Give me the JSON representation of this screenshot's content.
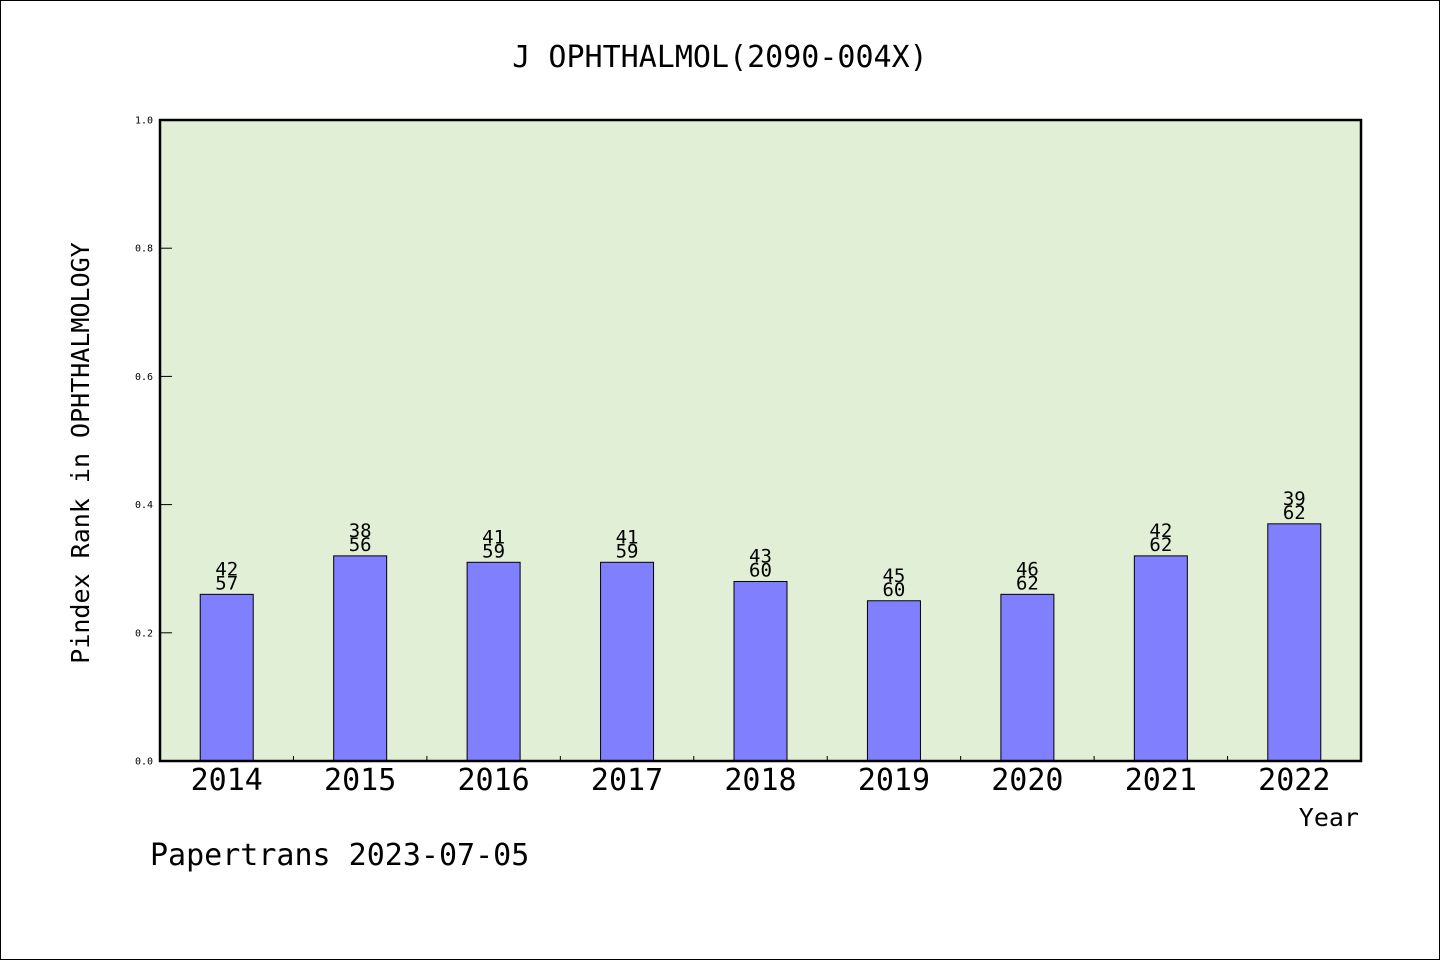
{
  "chart_data": {
    "type": "bar",
    "title": "J OPHTHALMOL(2090-004X)",
    "xlabel": "Year",
    "ylabel": "Pindex Rank in OPHTHALMOLOGY",
    "ylim": [
      0.0,
      1.0
    ],
    "yticks": [
      "0.0",
      "0.2",
      "0.4",
      "0.6",
      "0.8",
      "1.0"
    ],
    "ytick_values": [
      0.0,
      0.2,
      0.4,
      0.6,
      0.8,
      1.0
    ],
    "grid": false,
    "legend": "none",
    "categories": [
      "2014",
      "2015",
      "2016",
      "2017",
      "2018",
      "2019",
      "2020",
      "2021",
      "2022"
    ],
    "values": [
      0.26,
      0.32,
      0.31,
      0.31,
      0.28,
      0.25,
      0.26,
      0.32,
      0.37
    ],
    "labels_top": [
      "42",
      "38",
      "41",
      "41",
      "43",
      "45",
      "46",
      "42",
      "39"
    ],
    "labels_bottom": [
      "57",
      "56",
      "59",
      "59",
      "60",
      "60",
      "62",
      "62",
      "62"
    ],
    "colors": {
      "plot_background": "#e2efd7",
      "bar_fill": "#8080ff",
      "bar_stroke": "#000000",
      "axis": "#000000"
    }
  },
  "footer": {
    "text": "Papertrans 2023-07-05"
  }
}
